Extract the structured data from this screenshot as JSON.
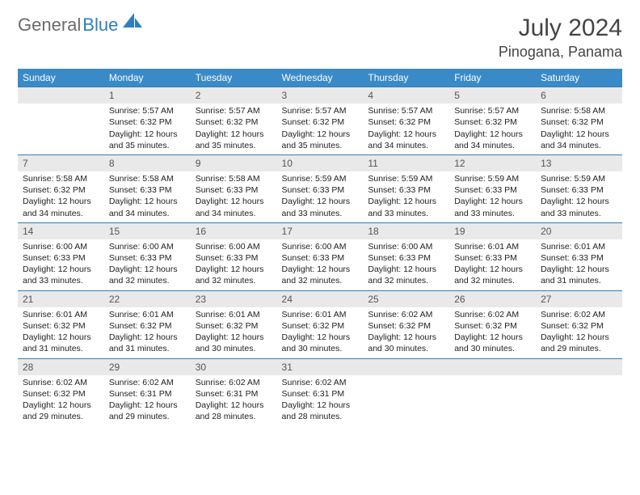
{
  "brand": {
    "part1": "General",
    "part2": "Blue",
    "logo_fill": "#2d7fc1"
  },
  "title": {
    "month": "July 2024",
    "location": "Pinogana, Panama"
  },
  "colors": {
    "header_bg": "#3a8ac7",
    "header_text": "#ffffff",
    "daynum_bg": "#e9e9e9",
    "cell_border_top": "#2d7fc1",
    "body_text": "#222222"
  },
  "weekdays": [
    "Sunday",
    "Monday",
    "Tuesday",
    "Wednesday",
    "Thursday",
    "Friday",
    "Saturday"
  ],
  "first_weekday_index": 1,
  "days": [
    {
      "n": 1,
      "sunrise": "5:57 AM",
      "sunset": "6:32 PM",
      "daylight": "12 hours and 35 minutes."
    },
    {
      "n": 2,
      "sunrise": "5:57 AM",
      "sunset": "6:32 PM",
      "daylight": "12 hours and 35 minutes."
    },
    {
      "n": 3,
      "sunrise": "5:57 AM",
      "sunset": "6:32 PM",
      "daylight": "12 hours and 35 minutes."
    },
    {
      "n": 4,
      "sunrise": "5:57 AM",
      "sunset": "6:32 PM",
      "daylight": "12 hours and 34 minutes."
    },
    {
      "n": 5,
      "sunrise": "5:57 AM",
      "sunset": "6:32 PM",
      "daylight": "12 hours and 34 minutes."
    },
    {
      "n": 6,
      "sunrise": "5:58 AM",
      "sunset": "6:32 PM",
      "daylight": "12 hours and 34 minutes."
    },
    {
      "n": 7,
      "sunrise": "5:58 AM",
      "sunset": "6:32 PM",
      "daylight": "12 hours and 34 minutes."
    },
    {
      "n": 8,
      "sunrise": "5:58 AM",
      "sunset": "6:33 PM",
      "daylight": "12 hours and 34 minutes."
    },
    {
      "n": 9,
      "sunrise": "5:58 AM",
      "sunset": "6:33 PM",
      "daylight": "12 hours and 34 minutes."
    },
    {
      "n": 10,
      "sunrise": "5:59 AM",
      "sunset": "6:33 PM",
      "daylight": "12 hours and 33 minutes."
    },
    {
      "n": 11,
      "sunrise": "5:59 AM",
      "sunset": "6:33 PM",
      "daylight": "12 hours and 33 minutes."
    },
    {
      "n": 12,
      "sunrise": "5:59 AM",
      "sunset": "6:33 PM",
      "daylight": "12 hours and 33 minutes."
    },
    {
      "n": 13,
      "sunrise": "5:59 AM",
      "sunset": "6:33 PM",
      "daylight": "12 hours and 33 minutes."
    },
    {
      "n": 14,
      "sunrise": "6:00 AM",
      "sunset": "6:33 PM",
      "daylight": "12 hours and 33 minutes."
    },
    {
      "n": 15,
      "sunrise": "6:00 AM",
      "sunset": "6:33 PM",
      "daylight": "12 hours and 32 minutes."
    },
    {
      "n": 16,
      "sunrise": "6:00 AM",
      "sunset": "6:33 PM",
      "daylight": "12 hours and 32 minutes."
    },
    {
      "n": 17,
      "sunrise": "6:00 AM",
      "sunset": "6:33 PM",
      "daylight": "12 hours and 32 minutes."
    },
    {
      "n": 18,
      "sunrise": "6:00 AM",
      "sunset": "6:33 PM",
      "daylight": "12 hours and 32 minutes."
    },
    {
      "n": 19,
      "sunrise": "6:01 AM",
      "sunset": "6:33 PM",
      "daylight": "12 hours and 32 minutes."
    },
    {
      "n": 20,
      "sunrise": "6:01 AM",
      "sunset": "6:33 PM",
      "daylight": "12 hours and 31 minutes."
    },
    {
      "n": 21,
      "sunrise": "6:01 AM",
      "sunset": "6:32 PM",
      "daylight": "12 hours and 31 minutes."
    },
    {
      "n": 22,
      "sunrise": "6:01 AM",
      "sunset": "6:32 PM",
      "daylight": "12 hours and 31 minutes."
    },
    {
      "n": 23,
      "sunrise": "6:01 AM",
      "sunset": "6:32 PM",
      "daylight": "12 hours and 30 minutes."
    },
    {
      "n": 24,
      "sunrise": "6:01 AM",
      "sunset": "6:32 PM",
      "daylight": "12 hours and 30 minutes."
    },
    {
      "n": 25,
      "sunrise": "6:02 AM",
      "sunset": "6:32 PM",
      "daylight": "12 hours and 30 minutes."
    },
    {
      "n": 26,
      "sunrise": "6:02 AM",
      "sunset": "6:32 PM",
      "daylight": "12 hours and 30 minutes."
    },
    {
      "n": 27,
      "sunrise": "6:02 AM",
      "sunset": "6:32 PM",
      "daylight": "12 hours and 29 minutes."
    },
    {
      "n": 28,
      "sunrise": "6:02 AM",
      "sunset": "6:32 PM",
      "daylight": "12 hours and 29 minutes."
    },
    {
      "n": 29,
      "sunrise": "6:02 AM",
      "sunset": "6:31 PM",
      "daylight": "12 hours and 29 minutes."
    },
    {
      "n": 30,
      "sunrise": "6:02 AM",
      "sunset": "6:31 PM",
      "daylight": "12 hours and 28 minutes."
    },
    {
      "n": 31,
      "sunrise": "6:02 AM",
      "sunset": "6:31 PM",
      "daylight": "12 hours and 28 minutes."
    }
  ],
  "labels": {
    "sunrise": "Sunrise:",
    "sunset": "Sunset:",
    "daylight": "Daylight:"
  }
}
